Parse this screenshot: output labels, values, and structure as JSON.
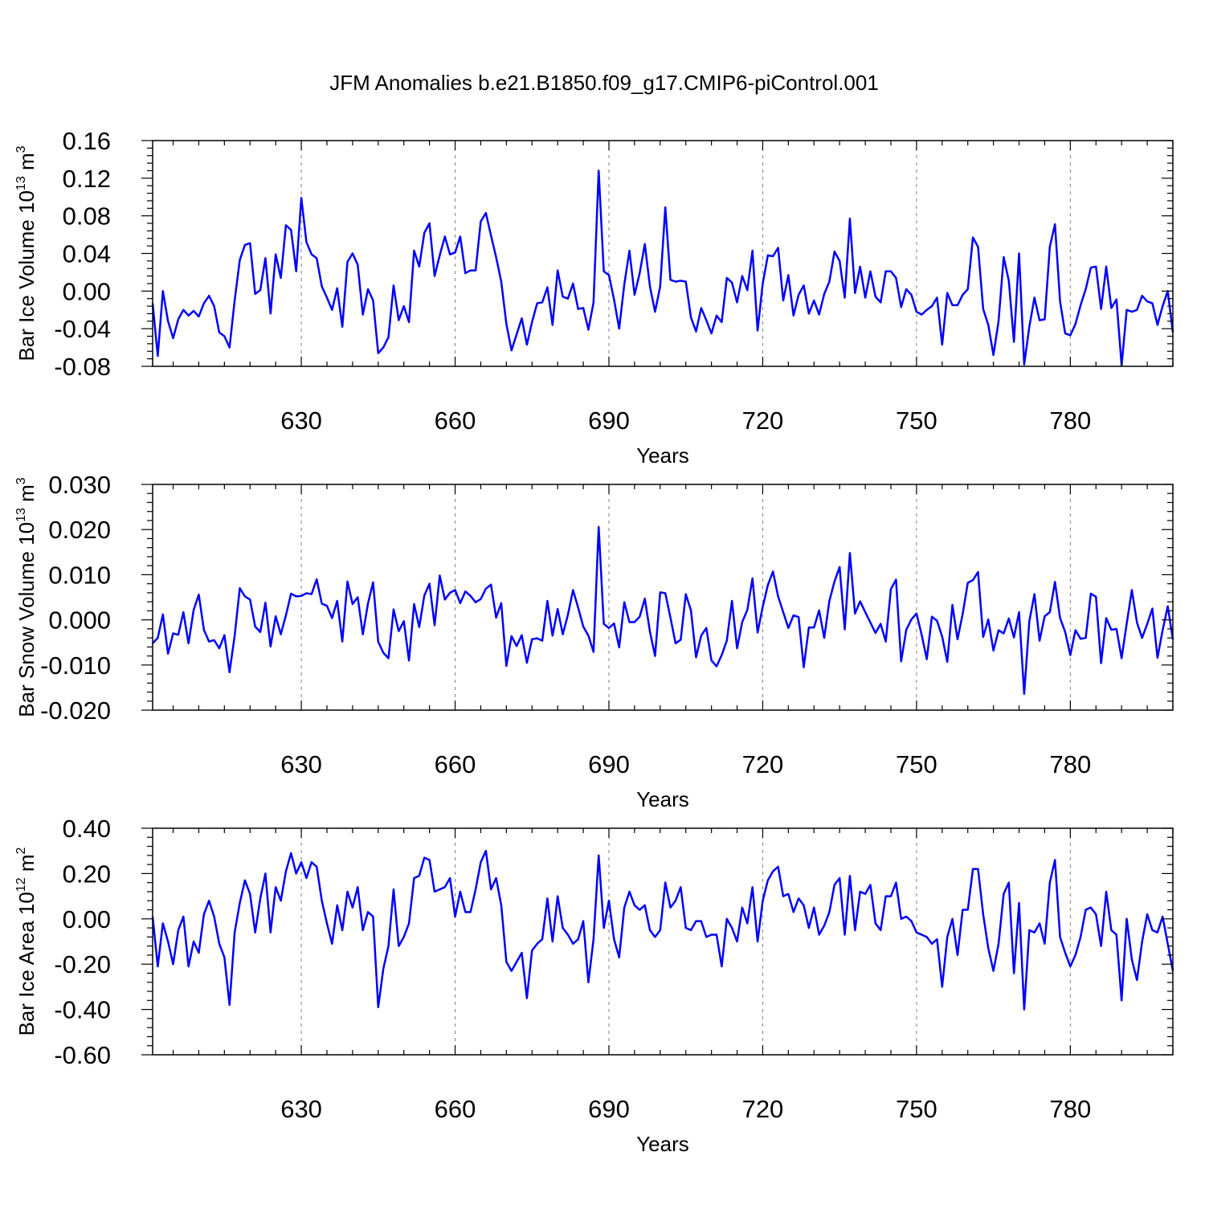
{
  "title": "JFM Anomalies b.e21.B1850.f09_g17.CMIP6-piControl.001",
  "colors": {
    "series": "#0000ff",
    "grid": "#808080"
  },
  "chart_data": [
    {
      "type": "line",
      "xlabel": "Years",
      "ylabel_main": "Bar Ice Volume 10",
      "ylabel_exp": "13",
      "ylabel_unit": " m",
      "ylabel_unit_exp": "3",
      "xlim": [
        601,
        800
      ],
      "ylim": [
        -0.08,
        0.16
      ],
      "ymajor": 0.04,
      "ydecimals": 2,
      "xticks": [
        630,
        660,
        690,
        720,
        750,
        780
      ],
      "x_start": 601,
      "values": [
        -0.013,
        -0.069,
        0.0,
        -0.032,
        -0.05,
        -0.03,
        -0.02,
        -0.026,
        -0.021,
        -0.027,
        -0.013,
        -0.005,
        -0.016,
        -0.044,
        -0.048,
        -0.06,
        -0.01,
        0.033,
        0.049,
        0.051,
        -0.003,
        0.001,
        0.035,
        -0.024,
        0.039,
        0.014,
        0.07,
        0.065,
        0.021,
        0.099,
        0.052,
        0.039,
        0.035,
        0.005,
        -0.007,
        -0.02,
        0.003,
        -0.038,
        0.031,
        0.04,
        0.028,
        -0.025,
        0.002,
        -0.01,
        -0.066,
        -0.06,
        -0.049,
        0.006,
        -0.031,
        -0.016,
        -0.033,
        0.043,
        0.026,
        0.062,
        0.072,
        0.016,
        0.038,
        0.058,
        0.039,
        0.041,
        0.058,
        0.019,
        0.022,
        0.022,
        0.074,
        0.083,
        0.059,
        0.036,
        0.01,
        -0.035,
        -0.063,
        -0.046,
        -0.029,
        -0.057,
        -0.033,
        -0.013,
        -0.012,
        0.004,
        -0.036,
        0.022,
        -0.006,
        -0.008,
        0.008,
        -0.019,
        -0.018,
        -0.041,
        -0.012,
        0.128,
        0.021,
        0.017,
        -0.009,
        -0.04,
        0.007,
        0.043,
        -0.004,
        0.019,
        0.05,
        0.005,
        -0.022,
        0.005,
        0.089,
        0.012,
        0.01,
        0.011,
        0.01,
        -0.028,
        -0.043,
        -0.018,
        -0.031,
        -0.045,
        -0.026,
        -0.033,
        0.014,
        0.009,
        -0.012,
        0.016,
        0.001,
        0.043,
        -0.042,
        0.008,
        0.038,
        0.037,
        0.046,
        -0.01,
        0.017,
        -0.026,
        -0.004,
        0.006,
        -0.024,
        -0.01,
        -0.025,
        -0.003,
        0.01,
        0.042,
        0.032,
        -0.007,
        0.077,
        -0.002,
        0.026,
        -0.007,
        0.021,
        -0.006,
        -0.012,
        0.021,
        0.021,
        0.014,
        -0.017,
        0.002,
        -0.004,
        -0.022,
        -0.025,
        -0.02,
        -0.016,
        -0.007,
        -0.057,
        -0.002,
        -0.015,
        -0.015,
        -0.004,
        0.002,
        0.057,
        0.047,
        -0.019,
        -0.036,
        -0.068,
        -0.032,
        0.036,
        0.011,
        -0.054,
        0.04,
        -0.078,
        -0.038,
        -0.007,
        -0.031,
        -0.03,
        0.047,
        0.071,
        -0.011,
        -0.045,
        -0.047,
        -0.035,
        -0.015,
        0.002,
        0.025,
        0.026,
        -0.019,
        0.026,
        -0.018,
        -0.009,
        -0.079,
        -0.02,
        -0.022,
        -0.02,
        -0.005,
        -0.011,
        -0.013,
        -0.036,
        -0.016,
        0.0,
        -0.044
      ]
    },
    {
      "type": "line",
      "xlabel": "Years",
      "ylabel_main": "Bar Snow Volume 10",
      "ylabel_exp": "13",
      "ylabel_unit": " m",
      "ylabel_unit_exp": "3",
      "xlim": [
        601,
        800
      ],
      "ylim": [
        -0.02,
        0.03
      ],
      "ymajor": 0.01,
      "ydecimals": 3,
      "xticks": [
        630,
        660,
        690,
        720,
        750,
        780
      ],
      "x_start": 601,
      "values": [
        -0.0052,
        -0.004,
        0.0012,
        -0.0075,
        -0.003,
        -0.0033,
        0.0017,
        -0.0052,
        0.0022,
        0.0056,
        -0.0022,
        -0.0048,
        -0.0045,
        -0.0063,
        -0.0034,
        -0.0116,
        -0.0035,
        0.007,
        0.0052,
        0.0045,
        -0.0015,
        -0.0027,
        0.0038,
        -0.0059,
        0.0008,
        -0.0032,
        0.001,
        0.0058,
        0.0052,
        0.0053,
        0.0059,
        0.0057,
        0.009,
        0.0036,
        0.0031,
        0.0004,
        0.0042,
        -0.0048,
        0.0085,
        0.0035,
        0.005,
        -0.0032,
        0.0036,
        0.0083,
        -0.0048,
        -0.0073,
        -0.0085,
        0.0023,
        -0.0025,
        -0.0003,
        -0.009,
        0.0035,
        -0.0016,
        0.0054,
        0.008,
        -0.0012,
        0.0098,
        0.0045,
        0.006,
        0.0066,
        0.0037,
        0.0063,
        0.0053,
        0.0039,
        0.0046,
        0.0069,
        0.0078,
        0.0005,
        0.0037,
        -0.0102,
        -0.0036,
        -0.0058,
        -0.0034,
        -0.0095,
        -0.0043,
        -0.0041,
        -0.0046,
        0.0042,
        -0.0035,
        0.0024,
        -0.0032,
        0.0011,
        0.0066,
        0.0027,
        -0.0015,
        -0.0035,
        -0.0071,
        0.0206,
        -0.0009,
        -0.0018,
        -0.0008,
        -0.0061,
        0.0039,
        -0.0005,
        -0.0005,
        0.0007,
        0.0047,
        -0.0026,
        -0.008,
        0.0061,
        0.0059,
        0.0005,
        -0.0052,
        -0.0044,
        0.0057,
        0.0021,
        -0.0083,
        -0.0035,
        -0.0018,
        -0.009,
        -0.0103,
        -0.0078,
        -0.0046,
        0.0042,
        -0.0063,
        -0.0005,
        0.0022,
        0.0092,
        -0.0028,
        0.0029,
        0.0077,
        0.0107,
        0.0052,
        0.0017,
        -0.0018,
        0.001,
        0.0006,
        -0.0105,
        -0.0017,
        -0.0017,
        0.0021,
        -0.004,
        0.0042,
        0.0085,
        0.0117,
        -0.0021,
        0.0148,
        0.0014,
        0.0041,
        0.0017,
        -0.0006,
        -0.0029,
        -0.0009,
        -0.0048,
        0.0068,
        0.0089,
        -0.0092,
        -0.0022,
        0.0001,
        0.0014,
        -0.0033,
        -0.0087,
        0.0007,
        -0.0002,
        -0.0037,
        -0.0093,
        0.0033,
        -0.0043,
        0.0013,
        0.0082,
        0.0088,
        0.0106,
        -0.0038,
        0.0001,
        -0.0068,
        -0.0023,
        -0.003,
        0.0003,
        -0.0039,
        0.0017,
        -0.0164,
        -0.0003,
        0.0057,
        -0.0046,
        0.0008,
        0.0017,
        0.0084,
        0.0004,
        -0.0027,
        -0.0078,
        -0.0023,
        -0.0042,
        -0.004,
        0.0058,
        0.0051,
        -0.0096,
        0.0004,
        -0.0022,
        -0.002,
        -0.0085,
        -0.0008,
        0.0066,
        -0.0006,
        -0.004,
        -0.0009,
        0.0025,
        -0.0084,
        -0.0023,
        0.003,
        -0.0043
      ]
    },
    {
      "type": "line",
      "xlabel": "Years",
      "ylabel_main": "Bar Ice Area 10",
      "ylabel_exp": "12",
      "ylabel_unit": " m",
      "ylabel_unit_exp": "2",
      "xlim": [
        601,
        800
      ],
      "ylim": [
        -0.6,
        0.4
      ],
      "ymajor": 0.2,
      "ydecimals": 2,
      "xticks": [
        630,
        660,
        690,
        720,
        750,
        780
      ],
      "x_start": 601,
      "values": [
        0.01,
        -0.21,
        -0.02,
        -0.1,
        -0.2,
        -0.05,
        0.01,
        -0.21,
        -0.1,
        -0.15,
        0.02,
        0.08,
        0.01,
        -0.11,
        -0.17,
        -0.38,
        -0.06,
        0.07,
        0.17,
        0.11,
        -0.06,
        0.09,
        0.2,
        -0.06,
        0.14,
        0.08,
        0.21,
        0.29,
        0.2,
        0.25,
        0.18,
        0.25,
        0.23,
        0.08,
        -0.02,
        -0.11,
        0.06,
        -0.05,
        0.12,
        0.05,
        0.14,
        -0.05,
        0.03,
        0.01,
        -0.39,
        -0.22,
        -0.12,
        0.13,
        -0.12,
        -0.08,
        -0.02,
        0.18,
        0.19,
        0.27,
        0.26,
        0.12,
        0.13,
        0.14,
        0.18,
        0.01,
        0.12,
        0.03,
        0.03,
        0.13,
        0.25,
        0.3,
        0.13,
        0.18,
        0.06,
        -0.19,
        -0.23,
        -0.19,
        -0.15,
        -0.35,
        -0.14,
        -0.11,
        -0.09,
        0.09,
        -0.1,
        0.1,
        -0.04,
        -0.07,
        -0.11,
        -0.09,
        -0.01,
        -0.28,
        -0.09,
        0.28,
        -0.04,
        0.08,
        -0.09,
        -0.17,
        0.05,
        0.12,
        0.06,
        0.04,
        0.06,
        -0.05,
        -0.08,
        -0.05,
        0.16,
        0.05,
        0.08,
        0.14,
        -0.04,
        -0.05,
        -0.01,
        -0.01,
        -0.08,
        -0.07,
        -0.07,
        -0.21,
        0.0,
        -0.04,
        -0.1,
        0.05,
        -0.02,
        0.14,
        -0.1,
        0.08,
        0.17,
        0.21,
        0.23,
        0.1,
        0.11,
        0.03,
        0.09,
        0.06,
        -0.04,
        0.05,
        -0.07,
        -0.03,
        0.03,
        0.15,
        0.18,
        -0.07,
        0.19,
        -0.05,
        0.12,
        0.11,
        0.15,
        -0.02,
        -0.05,
        0.1,
        0.1,
        0.16,
        0.0,
        0.01,
        -0.01,
        -0.06,
        -0.07,
        -0.08,
        -0.11,
        -0.09,
        -0.3,
        -0.08,
        0.0,
        -0.16,
        0.04,
        0.04,
        0.22,
        0.22,
        0.02,
        -0.13,
        -0.23,
        -0.11,
        0.11,
        0.16,
        -0.24,
        0.07,
        -0.4,
        -0.05,
        -0.06,
        -0.02,
        -0.11,
        0.16,
        0.26,
        -0.08,
        -0.15,
        -0.21,
        -0.16,
        -0.08,
        0.04,
        0.05,
        0.02,
        -0.12,
        0.12,
        -0.05,
        -0.07,
        -0.36,
        0.0,
        -0.18,
        -0.27,
        -0.1,
        0.02,
        -0.05,
        -0.06,
        0.01,
        -0.11,
        -0.23
      ]
    }
  ]
}
